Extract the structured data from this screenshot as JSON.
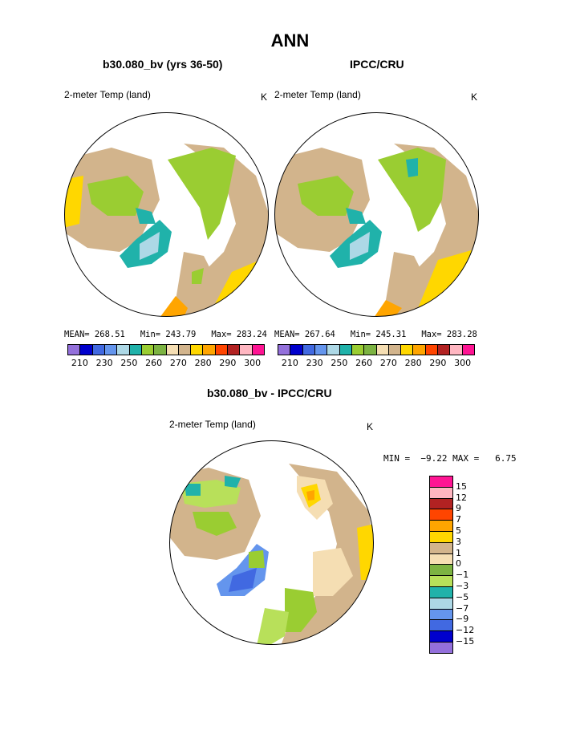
{
  "page": {
    "title": "ANN",
    "left_panel_title": "b30.080_bv (yrs 36-50)",
    "right_panel_title": "IPCC/CRU",
    "diff_title": "b30.080_bv - IPCC/CRU"
  },
  "panels": [
    {
      "label": "2-meter Temp (land)",
      "unit": "K",
      "stats": "MEAN= 268.51   Min= 243.79   Max= 283.24"
    },
    {
      "label": "2-meter Temp (land)",
      "unit": "K",
      "stats": "MEAN= 267.64   Min= 245.31   Max= 283.28"
    }
  ],
  "abs_colorbar": {
    "colors": [
      "#9370db",
      "#0000cd",
      "#4169e1",
      "#6495ed",
      "#add8e6",
      "#20b2aa",
      "#9acd32",
      "#7cb342",
      "#f5deb3",
      "#d2b48c",
      "#ffd700",
      "#ffa500",
      "#ff4500",
      "#b22222",
      "#ffb6c1",
      "#ff1493"
    ],
    "ticks": [
      "210",
      "230",
      "250",
      "260",
      "270",
      "280",
      "290",
      "300"
    ]
  },
  "diff_panel": {
    "label": "2-meter Temp (land)",
    "unit": "K",
    "stats": "MIN =  −9.22 MAX =   6.75"
  },
  "diff_colorbar": {
    "colors": [
      "#ff1493",
      "#ffb6c1",
      "#b22222",
      "#ff4500",
      "#ffa500",
      "#ffd700",
      "#d2b48c",
      "#f5deb3",
      "#7cb342",
      "#b8e05a",
      "#20b2aa",
      "#add8e6",
      "#6495ed",
      "#4169e1",
      "#0000cd",
      "#9370db"
    ],
    "ticks": [
      "15",
      "12",
      "9",
      "7",
      "5",
      "3",
      "1",
      "0",
      "−1",
      "−3",
      "−5",
      "−7",
      "−9",
      "−12",
      "−15"
    ]
  }
}
